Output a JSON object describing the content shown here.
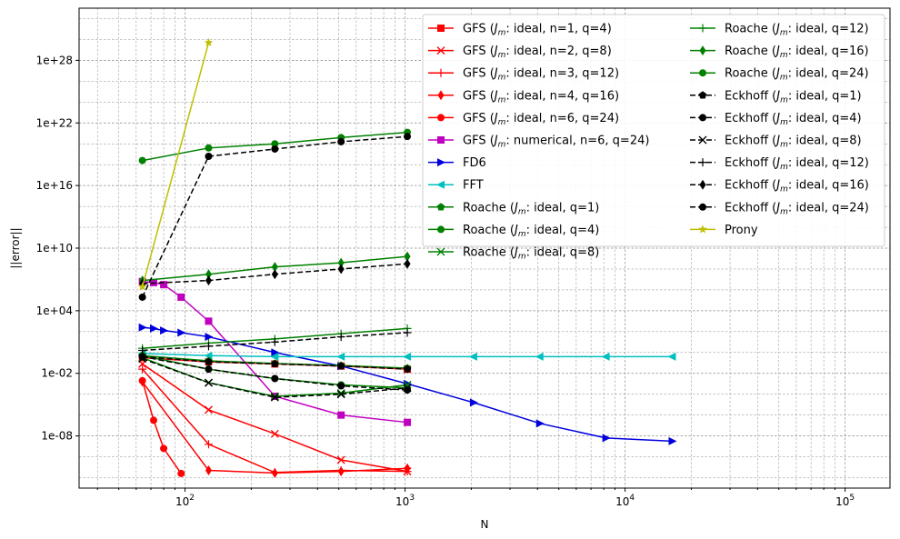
{
  "chart_data": {
    "type": "line",
    "title": "",
    "xlabel": "N",
    "ylabel": "||error||",
    "xscale": "log",
    "yscale": "log",
    "xlim": [
      33,
      160000
    ],
    "ylim_exponents": [
      -13,
      33
    ],
    "grid": "major-and-minor, dashed",
    "legend_position": "upper-right, two columns",
    "x_tick_labels": [
      {
        "base": "10",
        "exp": "2",
        "value": 100
      },
      {
        "base": "10",
        "exp": "3",
        "value": 1000
      },
      {
        "base": "10",
        "exp": "4",
        "value": 10000
      },
      {
        "base": "10",
        "exp": "5",
        "value": 100000
      }
    ],
    "y_tick_labels": [
      {
        "label": "1e-08",
        "exp": -8
      },
      {
        "label": "1e-02",
        "exp": -2
      },
      {
        "label": "1e+04",
        "exp": 4
      },
      {
        "label": "1e+10",
        "exp": 10
      },
      {
        "label": "1e+16",
        "exp": 16
      },
      {
        "label": "1e+22",
        "exp": 22
      },
      {
        "label": "1e+28",
        "exp": 28
      }
    ],
    "series": [
      {
        "name": "GFS (J_m: ideal, n=1, q=4)",
        "label_prefix": "GFS (",
        "label_sym": "J",
        "label_sub": "m",
        "label_suffix": ": ideal, n=1, q=4)",
        "color": "#ff0000",
        "marker": "square",
        "dash": "solid",
        "x": [
          64,
          128,
          256,
          512,
          1024
        ],
        "log10_y": [
          -0.5,
          -0.9,
          -1.1,
          -1.3,
          -1.6
        ]
      },
      {
        "name": "GFS (J_m: ideal, n=2, q=8)",
        "label_prefix": "GFS (",
        "label_sym": "J",
        "label_sub": "m",
        "label_suffix": ": ideal, n=2, q=8)",
        "color": "#ff0000",
        "marker": "x",
        "dash": "solid",
        "x": [
          64,
          128,
          256,
          512,
          1024
        ],
        "log10_y": [
          -1.1,
          -5.5,
          -7.8,
          -10.3,
          -11.4
        ]
      },
      {
        "name": "GFS (J_m: ideal, n=3, q=12)",
        "label_prefix": "GFS (",
        "label_sym": "J",
        "label_sub": "m",
        "label_suffix": ": ideal, n=3, q=12)",
        "color": "#ff0000",
        "marker": "plus",
        "dash": "solid",
        "x": [
          64,
          128,
          256,
          512,
          1024
        ],
        "log10_y": [
          -1.6,
          -8.8,
          -11.5,
          -11.3,
          -11.4
        ]
      },
      {
        "name": "GFS (J_m: ideal, n=4, q=16)",
        "label_prefix": "GFS (",
        "label_sym": "J",
        "label_sub": "m",
        "label_suffix": ": ideal, n=4, q=16)",
        "color": "#ff0000",
        "marker": "diamond",
        "dash": "solid",
        "x": [
          64,
          128,
          256,
          512,
          1024
        ],
        "log10_y": [
          -2.8,
          -11.3,
          -11.55,
          -11.4,
          -11.1
        ]
      },
      {
        "name": "GFS (J_m: ideal, n=6, q=24)",
        "label_prefix": "GFS (",
        "label_sym": "J",
        "label_sub": "m",
        "label_suffix": ": ideal, n=6, q=24)",
        "color": "#ff0000",
        "marker": "circle",
        "dash": "solid",
        "x": [
          64,
          72,
          80,
          96
        ],
        "log10_y": [
          -2.7,
          -6.5,
          -9.2,
          -11.6
        ]
      },
      {
        "name": "GFS (J_m: numerical, n=6, q=24)",
        "label_prefix": "GFS (",
        "label_sym": "J",
        "label_sub": "m",
        "label_suffix": ": numerical, n=6, q=24)",
        "color": "#c000c0",
        "marker": "square",
        "dash": "solid",
        "x": [
          64,
          72,
          80,
          96,
          128,
          256,
          512,
          1024
        ],
        "log10_y": [
          6.8,
          6.7,
          6.5,
          5.3,
          3.0,
          -4.2,
          -6.0,
          -6.7
        ]
      },
      {
        "name": "FD6",
        "label_prefix": "FD6",
        "label_sym": "",
        "label_sub": "",
        "label_suffix": "",
        "color": "#0000dd",
        "marker": "triangle-right",
        "dash": "solid",
        "x": [
          64,
          72,
          80,
          96,
          128,
          256,
          512,
          1024,
          2048,
          4096,
          8192,
          16384
        ],
        "log10_y": [
          2.4,
          2.3,
          2.1,
          1.9,
          1.5,
          0.0,
          -1.3,
          -3.0,
          -4.8,
          -6.8,
          -8.2,
          -8.5
        ]
      },
      {
        "name": "FFT",
        "label_prefix": "FFT",
        "label_sym": "",
        "label_sub": "",
        "label_suffix": "",
        "color": "#00bfbf",
        "marker": "triangle-left",
        "dash": "solid",
        "x": [
          64,
          128,
          256,
          512,
          1024,
          2048,
          4096,
          8192,
          16384
        ],
        "log10_y": [
          -0.1,
          -0.3,
          -0.4,
          -0.4,
          -0.4,
          -0.4,
          -0.4,
          -0.4,
          -0.4
        ]
      },
      {
        "name": "Roache (J_m: ideal, q=1)",
        "label_prefix": "Roache (",
        "label_sym": "J",
        "label_sub": "m",
        "label_suffix": ": ideal, q=1)",
        "color": "#008000",
        "marker": "pentagon",
        "dash": "solid",
        "x": [
          64,
          128,
          256,
          512,
          1024
        ],
        "log10_y": [
          -0.3,
          -0.8,
          -1.05,
          -1.25,
          -1.5
        ]
      },
      {
        "name": "Roache (J_m: ideal, q=4)",
        "label_prefix": "Roache (",
        "label_sym": "J",
        "label_sub": "m",
        "label_suffix": ": ideal, q=4)",
        "color": "#008000",
        "marker": "circle",
        "dash": "solid",
        "x": [
          64,
          128,
          256,
          512,
          1024
        ],
        "log10_y": [
          -0.3,
          -1.6,
          -2.5,
          -3.1,
          -3.4
        ]
      },
      {
        "name": "Roache (J_m: ideal, q=8)",
        "label_prefix": "Roache (",
        "label_sym": "J",
        "label_sub": "m",
        "label_suffix": ": ideal, q=8)",
        "color": "#008000",
        "marker": "x",
        "dash": "solid",
        "x": [
          64,
          128,
          256,
          512,
          1024
        ],
        "log10_y": [
          -0.5,
          -2.9,
          -4.2,
          -3.9,
          -3.1
        ]
      },
      {
        "name": "Roache (J_m: ideal, q=12)",
        "label_prefix": "Roache (",
        "label_sym": "J",
        "label_sub": "m",
        "label_suffix": ": ideal, q=12)",
        "color": "#008000",
        "marker": "plus",
        "dash": "solid",
        "x": [
          64,
          128,
          256,
          512,
          1024
        ],
        "log10_y": [
          0.4,
          0.9,
          1.3,
          1.8,
          2.3
        ]
      },
      {
        "name": "Roache (J_m: ideal, q=16)",
        "label_prefix": "Roache (",
        "label_sym": "J",
        "label_sub": "m",
        "label_suffix": ": ideal, q=16)",
        "color": "#008000",
        "marker": "diamond",
        "dash": "solid",
        "x": [
          64,
          128,
          256,
          512,
          1024
        ],
        "log10_y": [
          6.9,
          7.5,
          8.2,
          8.6,
          9.2
        ]
      },
      {
        "name": "Roache (J_m: ideal, q=24)",
        "label_prefix": "Roache (",
        "label_sym": "J",
        "label_sub": "m",
        "label_suffix": ": ideal, q=24)",
        "color": "#008000",
        "marker": "circle",
        "dash": "solid",
        "x": [
          64,
          128,
          256,
          512,
          1024
        ],
        "log10_y": [
          18.4,
          19.6,
          20.0,
          20.6,
          21.1
        ]
      },
      {
        "name": "Eckhoff (J_m: ideal, q=1)",
        "label_prefix": "Eckhoff (",
        "label_sym": "J",
        "label_sub": "m",
        "label_suffix": ": ideal, q=1)",
        "color": "#000000",
        "marker": "pentagon",
        "dash": "dashed",
        "x": [
          64,
          128,
          256,
          512,
          1024
        ],
        "log10_y": [
          -0.4,
          -0.9,
          -1.1,
          -1.3,
          -1.6
        ]
      },
      {
        "name": "Eckhoff (J_m: ideal, q=4)",
        "label_prefix": "Eckhoff (",
        "label_sym": "J",
        "label_sub": "m",
        "label_suffix": ": ideal, q=4)",
        "color": "#000000",
        "marker": "circle",
        "dash": "dashed",
        "x": [
          64,
          128,
          256,
          512,
          1024
        ],
        "log10_y": [
          -0.4,
          -1.6,
          -2.5,
          -3.2,
          -3.6
        ]
      },
      {
        "name": "Eckhoff (J_m: ideal, q=8)",
        "label_prefix": "Eckhoff (",
        "label_sym": "J",
        "label_sub": "m",
        "label_suffix": ": ideal, q=8)",
        "color": "#000000",
        "marker": "x",
        "dash": "dashed",
        "x": [
          64,
          128,
          256,
          512,
          1024
        ],
        "log10_y": [
          -0.6,
          -2.9,
          -4.3,
          -4.0,
          -3.4
        ]
      },
      {
        "name": "Eckhoff (J_m: ideal, q=12)",
        "label_prefix": "Eckhoff (",
        "label_sym": "J",
        "label_sub": "m",
        "label_suffix": ": ideal, q=12)",
        "color": "#000000",
        "marker": "plus",
        "dash": "dashed",
        "x": [
          64,
          128,
          256,
          512,
          1024
        ],
        "log10_y": [
          0.2,
          0.6,
          1.0,
          1.5,
          1.9
        ]
      },
      {
        "name": "Eckhoff (J_m: ideal, q=16)",
        "label_prefix": "Eckhoff (",
        "label_sym": "J",
        "label_sub": "m",
        "label_suffix": ": ideal, q=16)",
        "color": "#000000",
        "marker": "diamond",
        "dash": "dashed",
        "x": [
          64,
          128,
          256,
          512,
          1024
        ],
        "log10_y": [
          6.6,
          6.9,
          7.5,
          8.0,
          8.5
        ]
      },
      {
        "name": "Eckhoff (J_m: ideal, q=24)",
        "label_prefix": "Eckhoff (",
        "label_sym": "J",
        "label_sub": "m",
        "label_suffix": ": ideal, q=24)",
        "color": "#000000",
        "marker": "circle",
        "dash": "dashed",
        "x": [
          64,
          128,
          256,
          512,
          1024
        ],
        "log10_y": [
          5.3,
          18.8,
          19.5,
          20.2,
          20.7
        ]
      },
      {
        "name": "Prony",
        "label_prefix": "Prony",
        "label_sym": "",
        "label_sub": "",
        "label_suffix": "",
        "color": "#bfbf00",
        "marker": "star",
        "dash": "solid",
        "x": [
          64,
          128
        ],
        "log10_y": [
          6.3,
          29.7
        ]
      }
    ]
  }
}
